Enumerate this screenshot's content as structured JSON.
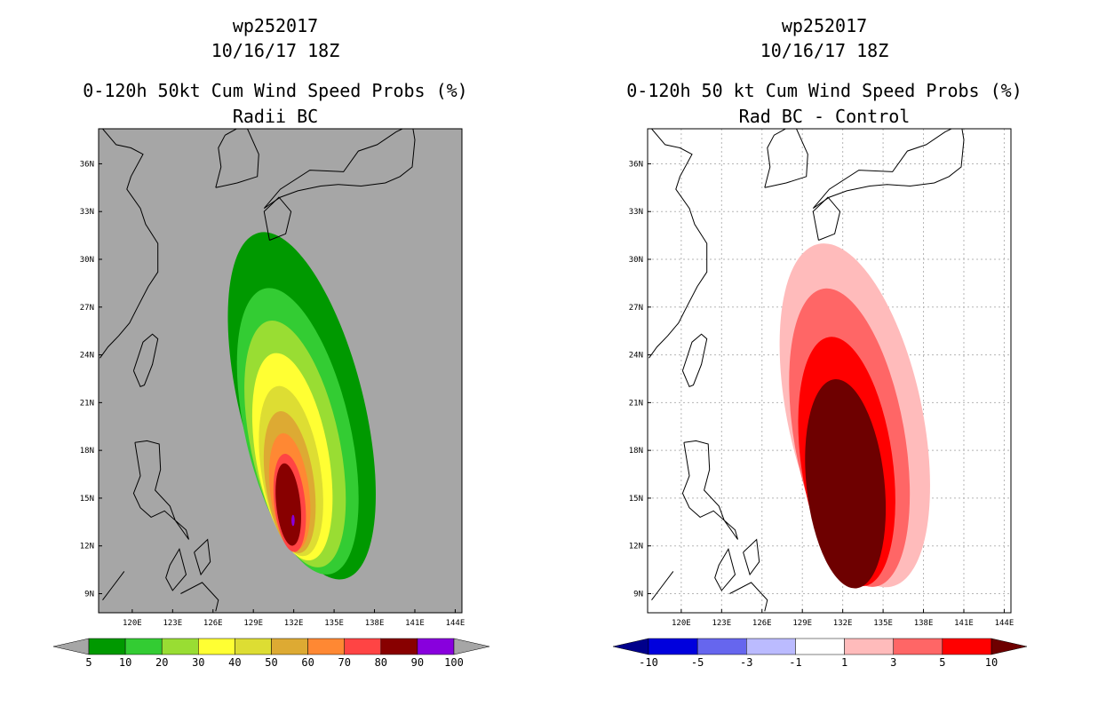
{
  "chart_data": [
    {
      "type": "heatmap",
      "title_lines": [
        "wp252017",
        "10/16/17 18Z",
        "0-120h 50kt Cum Wind Speed Probs (%)",
        "Radii BC"
      ],
      "background_color": "#a6a6a6",
      "grid": false,
      "lat_range": [
        7.8,
        38.2
      ],
      "lon_range": [
        117.5,
        144.5
      ],
      "lat_ticks": [
        9,
        12,
        15,
        18,
        21,
        24,
        27,
        30,
        33,
        36
      ],
      "lat_tick_labels": [
        "9N",
        "12N",
        "15N",
        "18N",
        "21N",
        "24N",
        "27N",
        "30N",
        "33N",
        "36N"
      ],
      "lon_ticks": [
        120,
        123,
        126,
        129,
        132,
        135,
        138,
        141,
        144
      ],
      "lon_tick_labels": [
        "120E",
        "123E",
        "126E",
        "129E",
        "132E",
        "135E",
        "138E",
        "141E",
        "144E"
      ],
      "colorbar": {
        "labels": [
          "5",
          "10",
          "20",
          "30",
          "40",
          "50",
          "60",
          "70",
          "80",
          "90",
          "100"
        ],
        "colors": [
          "#009900",
          "#33cc33",
          "#99dd33",
          "#ffff33",
          "#dddd33",
          "#ddaa33",
          "#ff8833",
          "#ff4444",
          "#880000",
          "#8800dd"
        ],
        "under_color": "#a6a6a6",
        "over_color": "#a6a6a6"
      },
      "contours": [
        {
          "level": 5,
          "color": "#009900",
          "center": [
            132.6,
            20.8
          ],
          "rx": 4.6,
          "ry": 11.2,
          "tilt": -14
        },
        {
          "level": 10,
          "color": "#33cc33",
          "center": [
            132.3,
            19.2
          ],
          "rx": 3.9,
          "ry": 9.2,
          "tilt": -13
        },
        {
          "level": 20,
          "color": "#99dd33",
          "center": [
            132.1,
            18.4
          ],
          "rx": 3.3,
          "ry": 7.9,
          "tilt": -12
        },
        {
          "level": 30,
          "color": "#ffff33",
          "center": [
            131.9,
            17.6
          ],
          "rx": 2.7,
          "ry": 6.6,
          "tilt": -10
        },
        {
          "level": 40,
          "color": "#dddd33",
          "center": [
            131.8,
            16.7
          ],
          "rx": 2.2,
          "ry": 5.4,
          "tilt": -9
        },
        {
          "level": 50,
          "color": "#ddaa33",
          "center": [
            131.7,
            16.0
          ],
          "rx": 1.8,
          "ry": 4.5,
          "tilt": -8
        },
        {
          "level": 60,
          "color": "#ff8833",
          "center": [
            131.7,
            15.4
          ],
          "rx": 1.45,
          "ry": 3.7,
          "tilt": -7
        },
        {
          "level": 70,
          "color": "#ff4444",
          "center": [
            131.7,
            14.7
          ],
          "rx": 1.15,
          "ry": 3.1,
          "tilt": -6
        },
        {
          "level": 80,
          "color": "#880000",
          "center": [
            131.6,
            14.6
          ],
          "rx": 0.9,
          "ry": 2.6,
          "tilt": -6
        },
        {
          "level": 90,
          "color": "#8800dd",
          "center": [
            131.95,
            13.6
          ],
          "rx": 0.12,
          "ry": 0.35,
          "tilt": 0
        }
      ]
    },
    {
      "type": "heatmap",
      "title_lines": [
        "wp252017",
        "10/16/17 18Z",
        "0-120h 50 kt Cum Wind Speed Probs (%)",
        "Rad BC - Control"
      ],
      "background_color": "#ffffff",
      "grid": true,
      "lat_range": [
        7.8,
        38.2
      ],
      "lon_range": [
        117.5,
        144.5
      ],
      "lat_ticks": [
        9,
        12,
        15,
        18,
        21,
        24,
        27,
        30,
        33,
        36
      ],
      "lat_tick_labels": [
        "9N",
        "12N",
        "15N",
        "18N",
        "21N",
        "24N",
        "27N",
        "30N",
        "33N",
        "36N"
      ],
      "lon_ticks": [
        120,
        123,
        126,
        129,
        132,
        135,
        138,
        141,
        144
      ],
      "lon_tick_labels": [
        "120E",
        "123E",
        "126E",
        "129E",
        "132E",
        "135E",
        "138E",
        "141E",
        "144E"
      ],
      "colorbar": {
        "labels": [
          "-10",
          "-5",
          "-3",
          "-1",
          "1",
          "3",
          "5",
          "10"
        ],
        "colors": [
          "#0000dd",
          "#6666ee",
          "#bbbbff",
          "#ffffff",
          "#ffbbbb",
          "#ff6666",
          "#ff0000"
        ],
        "under_color": "#00008b",
        "over_color": "#6e0000"
      },
      "contours": [
        {
          "level": 1,
          "color": "#ffbbbb",
          "center": [
            132.9,
            20.2
          ],
          "rx": 5.0,
          "ry": 11.0,
          "tilt": -12
        },
        {
          "level": 3,
          "color": "#ff6666",
          "center": [
            132.5,
            18.8
          ],
          "rx": 4.1,
          "ry": 9.5,
          "tilt": -10
        },
        {
          "level": 5,
          "color": "#ff0000",
          "center": [
            132.3,
            17.3
          ],
          "rx": 3.4,
          "ry": 7.9,
          "tilt": -8
        },
        {
          "level": 10,
          "color": "#6e0000",
          "center": [
            132.2,
            15.9
          ],
          "rx": 2.9,
          "ry": 6.6,
          "tilt": -6
        }
      ]
    }
  ]
}
